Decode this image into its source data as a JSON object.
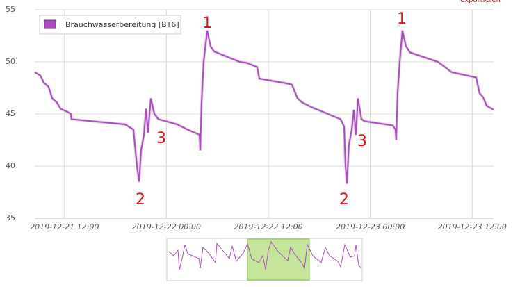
{
  "chart_data": {
    "type": "line",
    "export_label": "exportieren",
    "x": [
      "2019-12-21 08:30",
      "2019-12-21 09:09",
      "2019-12-21 09:34",
      "2019-12-21 10:08",
      "2019-12-21 10:33",
      "2019-12-21 11:07",
      "2019-12-21 11:32",
      "2019-12-21 12:21",
      "2019-12-21 12:45",
      "2019-12-21 12:50",
      "2019-12-21 19:08",
      "2019-12-21 20:07",
      "2019-12-21 20:32",
      "2019-12-21 20:47",
      "2019-12-21 21:01",
      "2019-12-21 21:21",
      "2019-12-21 21:36",
      "2019-12-21 21:50",
      "2019-12-21 22:10",
      "2019-12-21 22:35",
      "2019-12-21 23:04",
      "2019-12-22 01:17",
      "2019-12-22 02:30",
      "2019-12-22 03:54",
      "2019-12-22 03:59",
      "2019-12-22 04:08",
      "2019-12-22 04:23",
      "2019-12-22 04:48",
      "2019-12-22 05:12",
      "2019-12-22 05:37",
      "2019-12-22 08:38",
      "2019-12-22 09:28",
      "2019-12-22 10:41",
      "2019-12-22 10:56",
      "2019-12-22 14:22",
      "2019-12-22 14:47",
      "2019-12-22 15:26",
      "2019-12-22 16:00",
      "2019-12-22 17:14",
      "2019-12-22 20:30",
      "2019-12-22 20:55",
      "2019-12-22 21:05",
      "2019-12-22 21:15",
      "2019-12-22 21:29",
      "2019-12-22 21:49",
      "2019-12-22 22:04",
      "2019-12-22 22:18",
      "2019-12-22 22:33",
      "2019-12-22 22:58",
      "2019-12-22 23:22",
      "2019-12-23 02:39",
      "2019-12-23 02:58",
      "2019-12-23 03:03",
      "2019-12-23 03:13",
      "2019-12-23 03:28",
      "2019-12-23 03:47",
      "2019-12-23 04:12",
      "2019-12-23 04:41",
      "2019-12-23 07:58",
      "2019-12-23 09:36",
      "2019-12-23 12:28",
      "2019-12-23 12:52",
      "2019-12-23 13:17",
      "2019-12-23 13:42",
      "2019-12-23 14:31"
    ],
    "series": [
      {
        "name": "Brauchwasserbereitung [BT6]",
        "color": "#a94cbf",
        "values": [
          49.0,
          48.7,
          48.0,
          47.6,
          46.5,
          46.1,
          45.5,
          45.2,
          45.0,
          44.5,
          44.0,
          43.5,
          40.0,
          38.5,
          41.5,
          43.0,
          45.5,
          43.2,
          46.5,
          45.0,
          44.5,
          44.0,
          43.5,
          43.0,
          41.5,
          46.0,
          50.0,
          53.0,
          51.5,
          51.0,
          50.0,
          49.9,
          49.5,
          48.4,
          47.9,
          47.8,
          46.5,
          46.1,
          45.6,
          44.5,
          43.8,
          40.0,
          38.3,
          42.0,
          43.5,
          45.4,
          43.0,
          46.5,
          44.5,
          44.3,
          43.9,
          43.5,
          42.5,
          47.0,
          50.0,
          53.0,
          51.5,
          50.9,
          50.0,
          49.0,
          48.5,
          47.0,
          46.6,
          45.8,
          45.4
        ]
      }
    ],
    "xlim": [
      "2019-12-21 08:30",
      "2019-12-23 14:31"
    ],
    "xticks": [
      "2019-12-21 12:00",
      "2019-12-22 00:00",
      "2019-12-22 12:00",
      "2019-12-23 00:00",
      "2019-12-23 12:00"
    ],
    "ylim": [
      35,
      55
    ],
    "yticks": [
      35,
      40,
      45,
      50,
      55
    ],
    "grid": true,
    "annotations": [
      "1",
      "2",
      "3",
      "2",
      "3",
      "1"
    ]
  }
}
